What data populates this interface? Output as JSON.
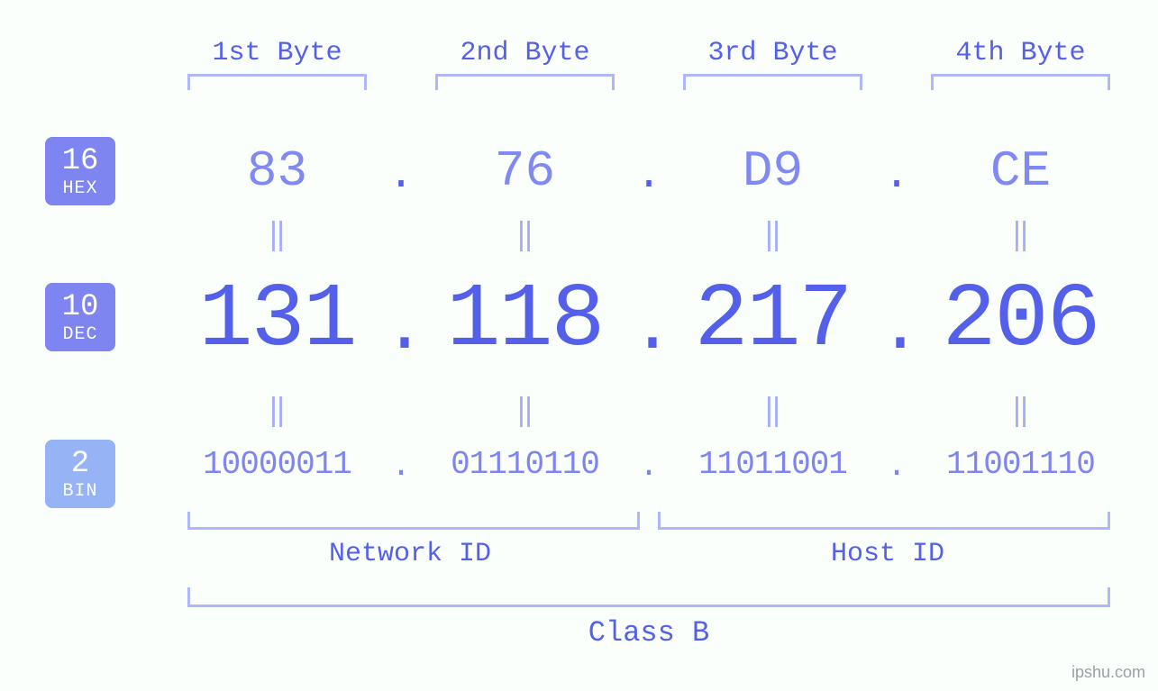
{
  "diagram": {
    "type": "infographic",
    "background_color": "#fafffb",
    "font_family": "monospace",
    "colors": {
      "primary": "#5460ea",
      "light": "#8089f2",
      "lighter": "#a7aef5",
      "bracket": "#b0b7f6",
      "badge_hex": "#7e85f0",
      "badge_dec": "#7e85f0",
      "badge_bin": "#96b3f5",
      "badge_text": "#ffffff",
      "watermark": "#9aa0a6"
    },
    "badges": {
      "hex": {
        "num": "16",
        "label": "HEX"
      },
      "dec": {
        "num": "10",
        "label": "DEC"
      },
      "bin": {
        "num": "2",
        "label": "BIN"
      }
    },
    "byte_headers": [
      "1st Byte",
      "2nd Byte",
      "3rd Byte",
      "4th Byte"
    ],
    "hex": [
      "83",
      "76",
      "D9",
      "CE"
    ],
    "dec": [
      "131",
      "118",
      "217",
      "206"
    ],
    "bin": [
      "10000011",
      "01110110",
      "11011001",
      "11001110"
    ],
    "dot": ".",
    "equals": "‖",
    "bottom": {
      "network_id_label": "Network ID",
      "host_id_label": "Host ID",
      "class_label": "Class B"
    },
    "watermark": "ipshu.com",
    "font_sizes": {
      "byte_header": 30,
      "hex": 56,
      "dec": 100,
      "bin": 36,
      "eq": 34,
      "bottom_label": 30,
      "class_label": 32,
      "badge_num": 34,
      "badge_label": 20,
      "watermark": 18
    }
  }
}
